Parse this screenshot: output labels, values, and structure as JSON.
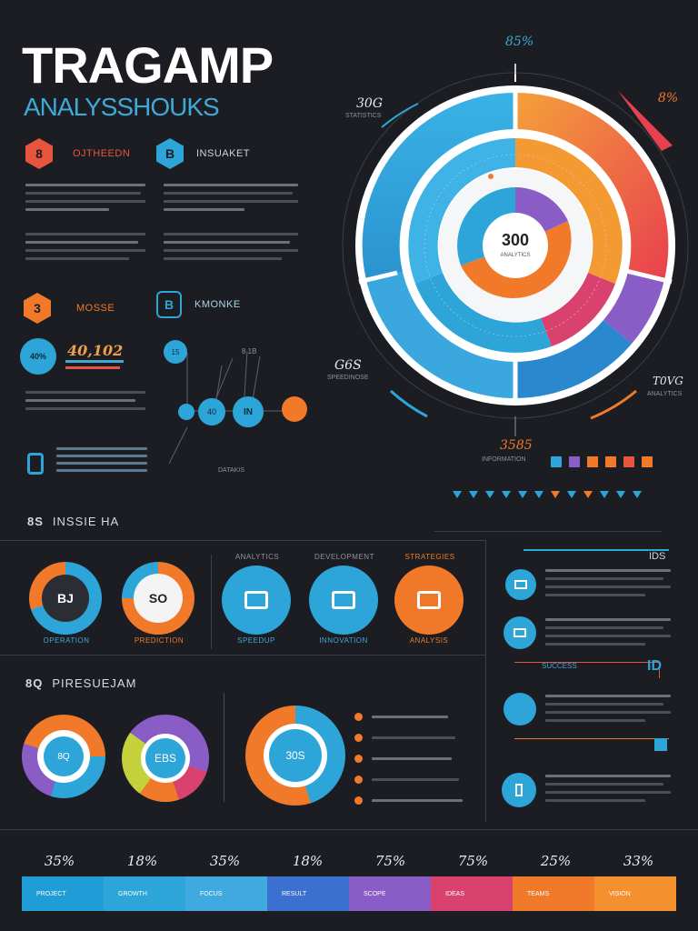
{
  "header": {
    "title": "TRAGAMP",
    "subtitle": "ANALYSSHOUKS"
  },
  "blocks": {
    "b1": {
      "icon": "8",
      "label": "OJTHEEDN"
    },
    "b2": {
      "icon": "B",
      "label": "INSUAKET"
    },
    "b3": {
      "icon": "3",
      "label": "MOSSE"
    },
    "b4": {
      "icon": "B",
      "label": "KMONKE"
    }
  },
  "stats": {
    "badge": "40%",
    "value_big": "40,102",
    "flow_nodes": [
      "15",
      "40",
      "IN"
    ],
    "flow_top": "8 1B",
    "flow_caption": "DATAKIS"
  },
  "radial": {
    "center_value": "300",
    "center_caption": "ANALYTICS",
    "left_top": "30G",
    "left_top_cap": "STATISTICS",
    "right_top": "85%",
    "right_top2": "8%",
    "left_bottom": "G6S",
    "left_bottom_cap": "SPEEDINOSE",
    "right_bottom": "T0VG",
    "right_bottom_cap": "ANALYTICS",
    "bottom": "3585",
    "bottom_cap": "INFORMATION"
  },
  "section1": {
    "num": "8S",
    "label": "INSSIE HA",
    "donut1": "BJ",
    "donut2": "SO",
    "donut_caps": [
      "OPERATION",
      "PREDICTION"
    ],
    "icons_caps_top": [
      "ANALYTICS",
      "DEVELOPMENT",
      "STRATEGIES"
    ],
    "icons_caps_bottom": [
      "SPEEDUP",
      "INNOVATION",
      "ANALYSIS"
    ],
    "side_top": "IDS",
    "side_label": "SUCCESS"
  },
  "section2": {
    "num": "8Q",
    "label": "PIRESUEJAM",
    "donut3": "EBS",
    "big_donut": "30S",
    "side_num": "ID"
  },
  "bottom": {
    "values": [
      "35%",
      "18%",
      "35%",
      "18%",
      "75%",
      "75%",
      "25%",
      "33%"
    ],
    "seg_labels": [
      "PROJECT",
      "GROWTH",
      "FOCUS",
      "RESULT",
      "SCOPE",
      "IDEAS",
      "TEAMS",
      "VISION"
    ]
  },
  "colors": {
    "blue": "#2ea5d9",
    "orange": "#f07a2a",
    "red": "#e8553d",
    "purple": "#8a5cc6",
    "pink": "#d9426e"
  }
}
